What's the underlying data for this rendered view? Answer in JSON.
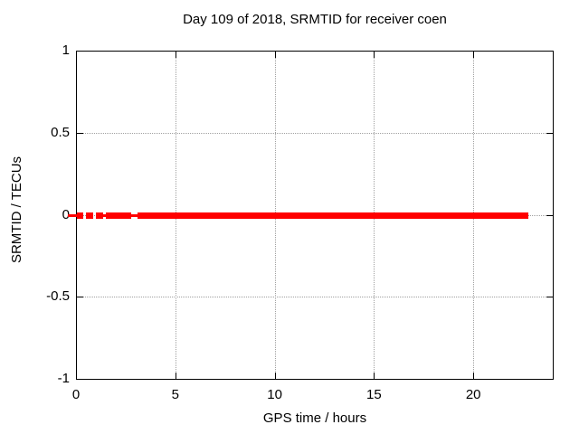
{
  "chart_data": {
    "type": "scatter",
    "title": "Day 109 of 2018, SRMTID for receiver coen",
    "xlabel": "GPS time / hours",
    "ylabel": "SRMTID / TECUs",
    "xlim": [
      0,
      24
    ],
    "ylim": [
      -1,
      1
    ],
    "xticks": [
      0,
      5,
      10,
      15,
      20
    ],
    "xtick_labels": [
      "0",
      "5",
      "10",
      "15",
      "20"
    ],
    "yticks": [
      -1,
      -0.5,
      0,
      0.5,
      1
    ],
    "ytick_labels": [
      "-1",
      "-0.5",
      "0",
      "0.5",
      "1"
    ],
    "grid": true,
    "grid_style": "dotted",
    "legend": false,
    "series": [
      {
        "name": "SRMTID",
        "marker": "filled-square",
        "color": "#ff0000",
        "y_value": 0,
        "segments": [
          {
            "x_start": -0.42,
            "x_end": 0.1,
            "style": "line"
          },
          {
            "x_start": 0.05,
            "x_end": 0.35,
            "style": "dense"
          },
          {
            "x_start": 0.5,
            "x_end": 0.85,
            "style": "dense"
          },
          {
            "x_start": 1.0,
            "x_end": 1.35,
            "style": "dense"
          },
          {
            "x_start": 1.35,
            "x_end": 1.5,
            "style": "line"
          },
          {
            "x_start": 1.5,
            "x_end": 2.78,
            "style": "dense"
          },
          {
            "x_start": 2.78,
            "x_end": 3.1,
            "style": "line"
          },
          {
            "x_start": 3.1,
            "x_end": 22.78,
            "style": "dense"
          }
        ]
      }
    ],
    "colors": {
      "data": "#ff0000",
      "grid": "#a0a0a0",
      "axis": "#000000",
      "text": "#000000",
      "background": "#ffffff"
    }
  }
}
